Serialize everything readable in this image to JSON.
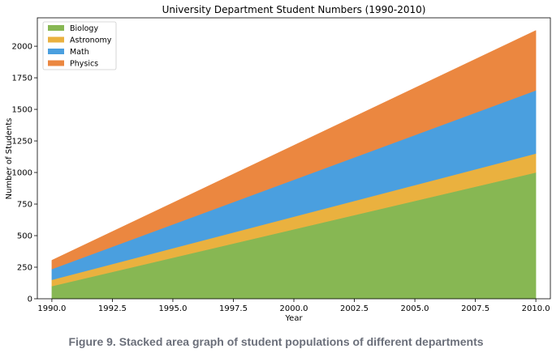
{
  "caption": "Figure 9. Stacked area graph of student populations of different departments",
  "chart_data": {
    "type": "area",
    "stacked": true,
    "title": "University Department Student Numbers (1990-2010)",
    "xlabel": "Year",
    "ylabel": "Number of Students",
    "x": [
      1990,
      2010
    ],
    "xlim": [
      1989.4,
      2010.6
    ],
    "ylim": [
      0,
      2225
    ],
    "xticks": [
      1990.0,
      1992.5,
      1995.0,
      1997.5,
      2000.0,
      2002.5,
      2005.0,
      2007.5,
      2010.0
    ],
    "xtick_labels": [
      "1990.0",
      "1992.5",
      "1995.0",
      "1997.5",
      "2000.0",
      "2002.5",
      "2005.0",
      "2007.5",
      "2010.0"
    ],
    "yticks": [
      0,
      250,
      500,
      750,
      1000,
      1250,
      1500,
      1750,
      2000
    ],
    "ytick_labels": [
      "0",
      "250",
      "500",
      "750",
      "1000",
      "1250",
      "1500",
      "1750",
      "2000"
    ],
    "grid": false,
    "legend_position": "top-left",
    "series": [
      {
        "name": "Biology",
        "values": [
          100,
          1000
        ],
        "color": "#87b753"
      },
      {
        "name": "Astronomy",
        "values": [
          50,
          150
        ],
        "color": "#eab13f"
      },
      {
        "name": "Math",
        "values": [
          85,
          500
        ],
        "color": "#4a9fdf"
      },
      {
        "name": "Physics",
        "values": [
          70,
          475
        ],
        "color": "#eb8740"
      }
    ]
  }
}
